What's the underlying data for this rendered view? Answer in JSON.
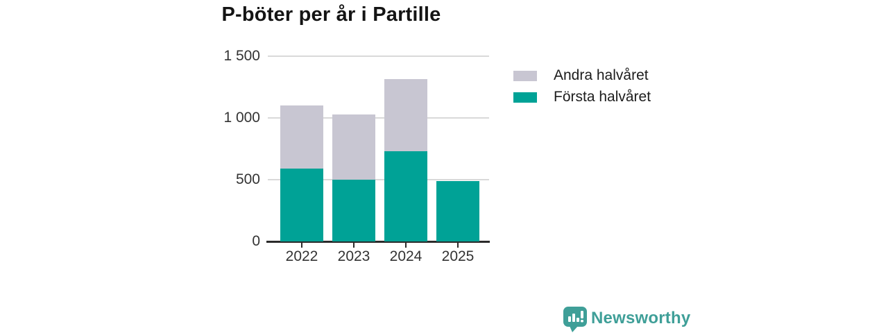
{
  "title": "P-böter per år i Partille",
  "chart_data": {
    "type": "bar",
    "stacked": true,
    "categories": [
      "2022",
      "2023",
      "2024",
      "2025"
    ],
    "series": [
      {
        "name": "Första halvåret",
        "color": "#00a296",
        "values": [
          590,
          500,
          730,
          490
        ]
      },
      {
        "name": "Andra halvåret",
        "color": "#c8c6d2",
        "values": [
          510,
          530,
          585,
          0
        ]
      }
    ],
    "title": "P-böter per år i Partille",
    "xlabel": "",
    "ylabel": "",
    "ylim": [
      0,
      1500
    ],
    "yticks": [
      {
        "value": 0,
        "label": "0"
      },
      {
        "value": 500,
        "label": "500"
      },
      {
        "value": 1000,
        "label": "1 000"
      },
      {
        "value": 1500,
        "label": "1 500"
      }
    ],
    "grid": true,
    "legend_position": "right-top"
  },
  "legend": {
    "items": [
      {
        "label": "Andra halvåret",
        "color": "#c8c6d2"
      },
      {
        "label": "Första halvåret",
        "color": "#00a296"
      }
    ]
  },
  "branding": {
    "logo_text": "Newsworthy",
    "logo_color": "#3f9f98",
    "logo_icon": "newsworthy-speech-bubble-bar-chart-icon"
  },
  "colors": {
    "axis": "#2b2b2b",
    "gridline": "#d9d9d9",
    "tick_text": "#333333",
    "title_text": "#141414",
    "background": "#ffffff"
  }
}
